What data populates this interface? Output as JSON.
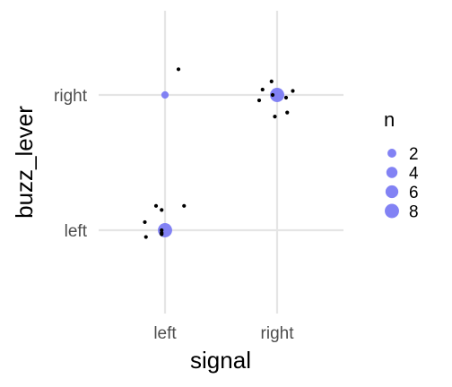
{
  "chart_data": {
    "type": "scatter",
    "xlabel": "signal",
    "ylabel": "buzz_lever",
    "x_categories": [
      "left",
      "right"
    ],
    "y_categories": [
      "left",
      "right"
    ],
    "grid": true,
    "legend": {
      "title": "n",
      "placement": "right",
      "labels": [
        "2",
        "4",
        "6",
        "8"
      ],
      "values": [
        2,
        4,
        6,
        8
      ]
    },
    "colors": {
      "count_points": "#7b7bf3",
      "jitter_points": "#000000",
      "grid": "#e5e5e5",
      "background": "#ffffff"
    },
    "count_points": [
      {
        "x": "left",
        "y": "left",
        "n": 8
      },
      {
        "x": "right",
        "y": "right",
        "n": 8
      },
      {
        "x": "left",
        "y": "right",
        "n": 1
      }
    ],
    "jitter_points": [
      {
        "x": 1.12,
        "y": 2.19
      },
      {
        "x": 1.95,
        "y": 2.1
      },
      {
        "x": 2.14,
        "y": 2.03
      },
      {
        "x": 1.87,
        "y": 2.04
      },
      {
        "x": 1.96,
        "y": 2.0
      },
      {
        "x": 2.08,
        "y": 1.98
      },
      {
        "x": 1.84,
        "y": 1.96
      },
      {
        "x": 2.09,
        "y": 1.87
      },
      {
        "x": 1.98,
        "y": 1.84
      },
      {
        "x": 0.92,
        "y": 1.18
      },
      {
        "x": 0.97,
        "y": 1.15
      },
      {
        "x": 1.17,
        "y": 1.18
      },
      {
        "x": 0.82,
        "y": 1.06
      },
      {
        "x": 0.97,
        "y": 1.0
      },
      {
        "x": 0.97,
        "y": 0.98
      },
      {
        "x": 0.83,
        "y": 0.95
      },
      {
        "x": 0.97,
        "y": 0.97
      }
    ]
  }
}
